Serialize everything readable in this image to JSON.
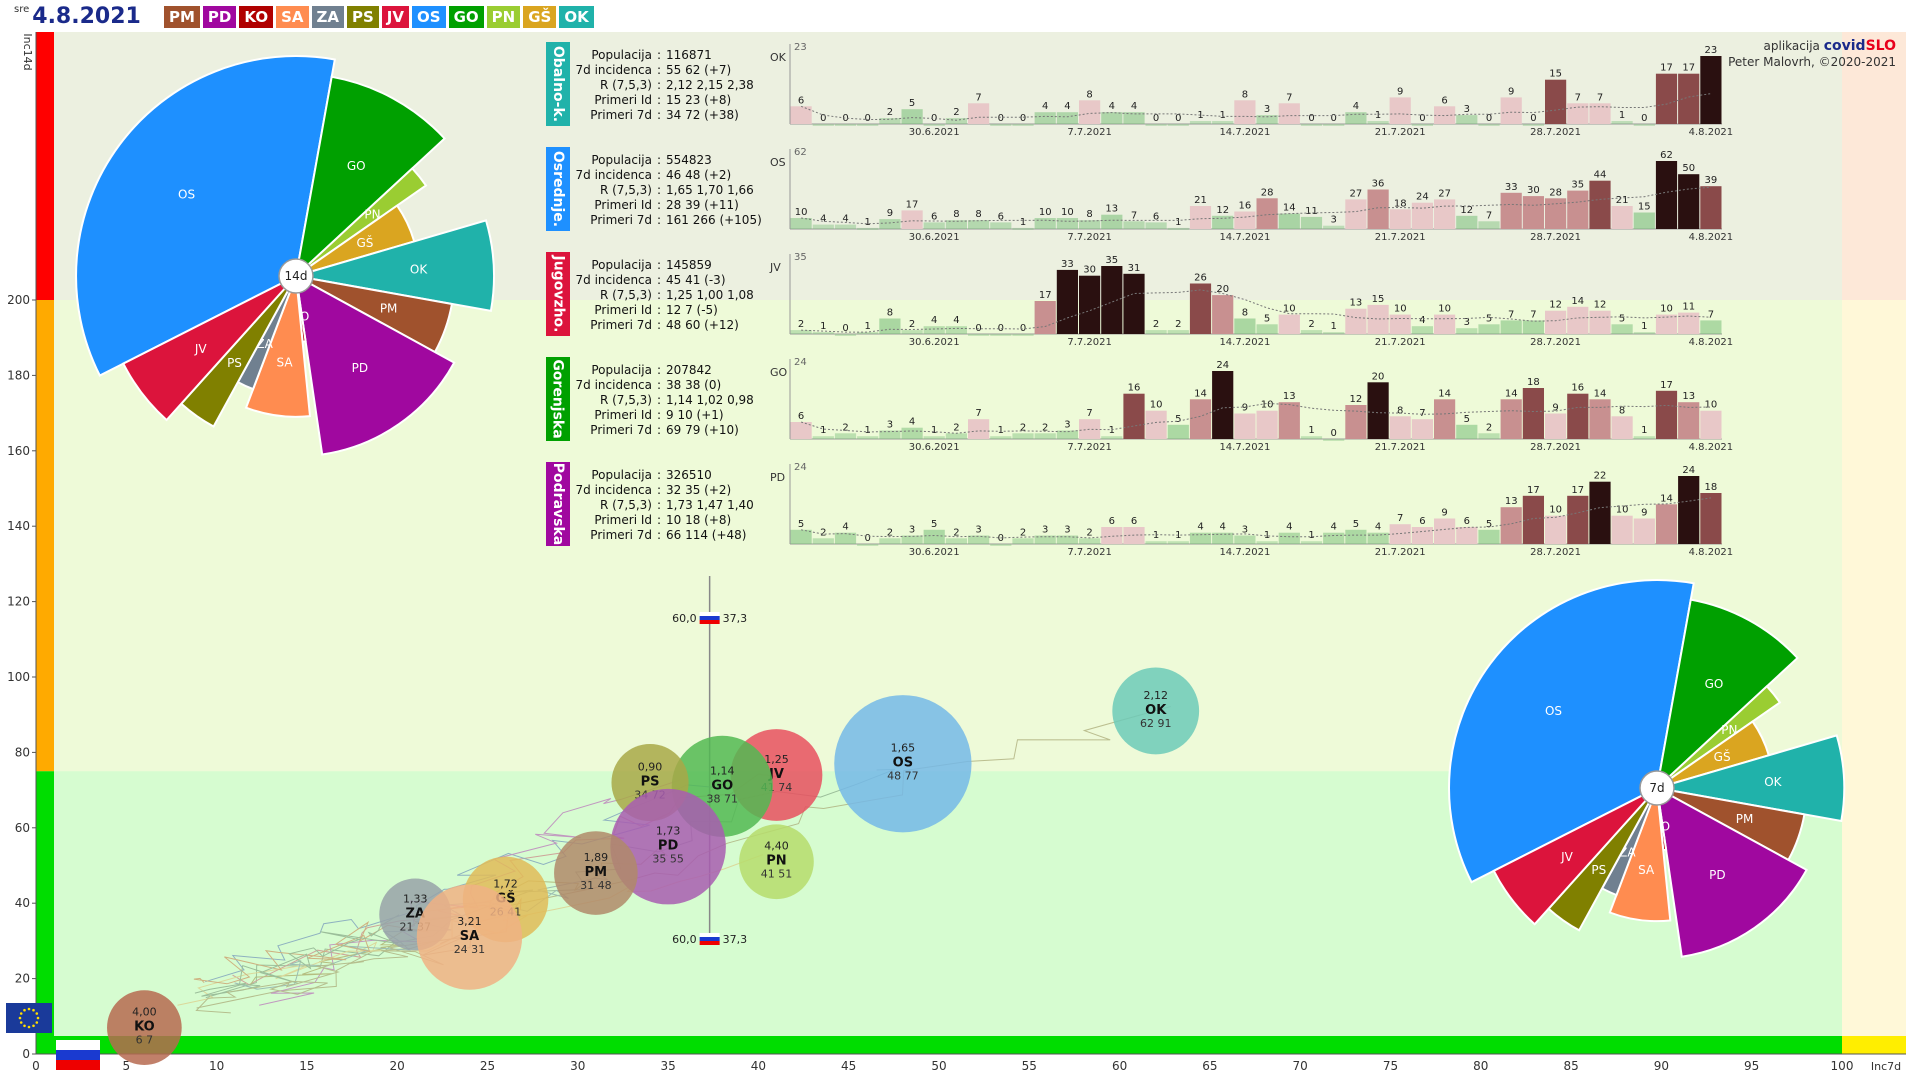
{
  "header": {
    "weekday": "sre",
    "date": "4.8.2021"
  },
  "badges": [
    {
      "label": "PM",
      "color": "#a0522d"
    },
    {
      "label": "PD",
      "color": "#a0089f"
    },
    {
      "label": "KO",
      "color": "#b00000"
    },
    {
      "label": "SA",
      "color": "#ff8c50"
    },
    {
      "label": "ZA",
      "color": "#708090"
    },
    {
      "label": "PS",
      "color": "#808000"
    },
    {
      "label": "JV",
      "color": "#dc143c"
    },
    {
      "label": "OS",
      "color": "#1e90ff"
    },
    {
      "label": "GO",
      "color": "#00a000"
    },
    {
      "label": "PN",
      "color": "#9acd32"
    },
    {
      "label": "GŠ",
      "color": "#daa520"
    },
    {
      "label": "OK",
      "color": "#20b2aa"
    }
  ],
  "credit": {
    "app": "aplikacija",
    "brand1": "covid",
    "brand2": "SLO",
    "author": "Peter Malovrh, ©2020-2021"
  },
  "chart_data": [
    {
      "type": "scatter",
      "xlabel": "Inc7d",
      "ylabel": "Inc14d",
      "xlim": [
        0,
        100
      ],
      "ylim": [
        0,
        220
      ],
      "xticks": [
        0,
        5,
        10,
        15,
        20,
        25,
        30,
        35,
        40,
        45,
        50,
        55,
        60,
        65,
        70,
        75,
        80,
        85,
        90,
        95,
        100
      ],
      "yticks": [
        0,
        20,
        40,
        60,
        80,
        100,
        120,
        140,
        160,
        180,
        200
      ],
      "reference": {
        "x": 37.3,
        "label_left": "60,0",
        "label_right": "37,3"
      },
      "points": [
        {
          "name": "OS",
          "r": "1,65",
          "inc": "48 77",
          "x": 48,
          "y": 77,
          "size": 5548,
          "color": "#74b9e7"
        },
        {
          "name": "OK",
          "r": "2,12",
          "inc": "62 91",
          "x": 62,
          "y": 91,
          "size": 1169,
          "color": "#6ccab8"
        },
        {
          "name": "JV",
          "r": "1,25",
          "inc": "41 74",
          "x": 41,
          "y": 74,
          "size": 1458,
          "color": "#e8505f"
        },
        {
          "name": "GO",
          "r": "1,14",
          "inc": "38 71",
          "x": 38,
          "y": 71,
          "size": 2078,
          "color": "#52b852"
        },
        {
          "name": "PS",
          "r": "0,90",
          "inc": "34 72",
          "x": 34,
          "y": 72,
          "size": 700,
          "color": "#a8a848"
        },
        {
          "name": "PD",
          "r": "1,73",
          "inc": "35 55",
          "x": 35,
          "y": 55,
          "size": 3265,
          "color": "#a85db0"
        },
        {
          "name": "PN",
          "r": "4,40",
          "inc": "41 51",
          "x": 41,
          "y": 51,
          "size": 600,
          "color": "#b6dc6c"
        },
        {
          "name": "PM",
          "r": "1,89",
          "inc": "31 48",
          "x": 31,
          "y": 48,
          "size": 1000,
          "color": "#b08a6a"
        },
        {
          "name": "GŠ",
          "r": "1,72",
          "inc": "26 41",
          "x": 26,
          "y": 41,
          "size": 1100,
          "color": "#e0bb58"
        },
        {
          "name": "ZA",
          "r": "1,33",
          "inc": "21 37",
          "x": 21,
          "y": 37,
          "size": 500,
          "color": "#98a2a8"
        },
        {
          "name": "SA",
          "r": "3,21",
          "inc": "24 31",
          "x": 24,
          "y": 31,
          "size": 2400,
          "color": "#f0b184"
        },
        {
          "name": "KO",
          "r": "4,00",
          "inc": "6 7",
          "x": 6,
          "y": 7,
          "size": 600,
          "color": "#b66a50"
        }
      ]
    },
    {
      "type": "pie",
      "center_label": "14d",
      "slices": [
        {
          "name": "OS",
          "value": 48,
          "radius": 1.0,
          "color": "#1e90ff"
        },
        {
          "name": "GO",
          "value": 14,
          "radius": 0.92,
          "color": "#00a000"
        },
        {
          "name": "PN",
          "value": 3,
          "radius": 0.72,
          "color": "#9acd32"
        },
        {
          "name": "GŠ",
          "value": 7,
          "radius": 0.56,
          "color": "#daa520"
        },
        {
          "name": "OK",
          "value": 10,
          "radius": 0.9,
          "color": "#20b2aa"
        },
        {
          "name": "PM",
          "value": 7,
          "radius": 0.72,
          "color": "#a0522d"
        },
        {
          "name": "PD",
          "value": 20,
          "radius": 0.82,
          "color": "#a0089f"
        },
        {
          "name": "KO",
          "value": 1,
          "radius": 0.3,
          "color": "#b00000"
        },
        {
          "name": "SA",
          "value": 10,
          "radius": 0.64,
          "color": "#ff8c50"
        },
        {
          "name": "ZA",
          "value": 3,
          "radius": 0.55,
          "color": "#708090"
        },
        {
          "name": "PS",
          "value": 5,
          "radius": 0.78,
          "color": "#808000"
        },
        {
          "name": "JV",
          "value": 8,
          "radius": 0.88,
          "color": "#dc143c"
        }
      ]
    },
    {
      "type": "pie",
      "center_label": "7d",
      "slices": [
        {
          "name": "OS",
          "value": 48,
          "radius": 1.0,
          "color": "#1e90ff"
        },
        {
          "name": "GO",
          "value": 14,
          "radius": 0.92,
          "color": "#00a000"
        },
        {
          "name": "PN",
          "value": 3,
          "radius": 0.72,
          "color": "#9acd32"
        },
        {
          "name": "GŠ",
          "value": 7,
          "radius": 0.56,
          "color": "#daa520"
        },
        {
          "name": "OK",
          "value": 10,
          "radius": 0.9,
          "color": "#20b2aa"
        },
        {
          "name": "PM",
          "value": 7,
          "radius": 0.72,
          "color": "#a0522d"
        },
        {
          "name": "PD",
          "value": 20,
          "radius": 0.82,
          "color": "#a0089f"
        },
        {
          "name": "KO",
          "value": 1,
          "radius": 0.3,
          "color": "#b00000"
        },
        {
          "name": "SA",
          "value": 10,
          "radius": 0.64,
          "color": "#ff8c50"
        },
        {
          "name": "ZA",
          "value": 3,
          "radius": 0.55,
          "color": "#708090"
        },
        {
          "name": "PS",
          "value": 5,
          "radius": 0.78,
          "color": "#808000"
        },
        {
          "name": "JV",
          "value": 8,
          "radius": 0.88,
          "color": "#dc143c"
        }
      ]
    },
    {
      "type": "bar",
      "region": "Obalno-k.",
      "code": "OK",
      "color": "#20b2aa",
      "ymax": "23",
      "xticks": [
        "30.6.2021",
        "7.7.2021",
        "14.7.2021",
        "21.7.2021",
        "28.7.2021",
        "4.8.2021"
      ],
      "values": [
        6,
        0,
        0,
        0,
        2,
        5,
        0,
        2,
        7,
        0,
        0,
        4,
        4,
        8,
        4,
        4,
        0,
        0,
        1,
        1,
        8,
        3,
        7,
        0,
        0,
        4,
        1,
        9,
        0,
        6,
        3,
        0,
        9,
        0,
        15,
        7,
        7,
        1,
        0,
        17,
        17,
        23
      ]
    },
    {
      "type": "bar",
      "region": "Osrednje.",
      "code": "OS",
      "color": "#1e90ff",
      "ymax": "62",
      "xticks": [
        "30.6.2021",
        "7.7.2021",
        "14.7.2021",
        "21.7.2021",
        "28.7.2021",
        "4.8.2021"
      ],
      "values": [
        10,
        4,
        4,
        1,
        9,
        17,
        6,
        8,
        8,
        6,
        1,
        10,
        10,
        8,
        13,
        7,
        6,
        1,
        21,
        12,
        16,
        28,
        14,
        11,
        3,
        27,
        36,
        18,
        24,
        27,
        12,
        7,
        33,
        30,
        28,
        35,
        44,
        21,
        15,
        62,
        50,
        39
      ]
    },
    {
      "type": "bar",
      "region": "Jugovzho.",
      "code": "JV",
      "color": "#dc143c",
      "ymax": "35",
      "xticks": [
        "30.6.2021",
        "7.7.2021",
        "14.7.2021",
        "21.7.2021",
        "28.7.2021",
        "4.8.2021"
      ],
      "values": [
        2,
        1,
        0,
        1,
        8,
        2,
        4,
        4,
        0,
        0,
        0,
        17,
        33,
        30,
        35,
        31,
        2,
        2,
        26,
        20,
        8,
        5,
        10,
        2,
        1,
        13,
        15,
        10,
        4,
        10,
        3,
        5,
        7,
        7,
        12,
        14,
        12,
        5,
        1,
        10,
        11,
        7
      ]
    },
    {
      "type": "bar",
      "region": "Gorenjska",
      "code": "GO",
      "color": "#00a000",
      "ymax": "24",
      "xticks": [
        "30.6.2021",
        "7.7.2021",
        "14.7.2021",
        "21.7.2021",
        "28.7.2021",
        "4.8.2021"
      ],
      "values": [
        6,
        1,
        2,
        1,
        3,
        4,
        1,
        2,
        7,
        1,
        2,
        2,
        3,
        7,
        1,
        16,
        10,
        5,
        14,
        24,
        9,
        10,
        13,
        1,
        0,
        12,
        20,
        8,
        7,
        14,
        5,
        2,
        14,
        18,
        9,
        16,
        14,
        8,
        1,
        17,
        13,
        10
      ]
    },
    {
      "type": "bar",
      "region": "Podravska",
      "code": "PD",
      "color": "#a0089f",
      "ymax": "24",
      "xticks": [
        "30.6.2021",
        "7.7.2021",
        "14.7.2021",
        "21.7.2021",
        "28.7.2021",
        "4.8.2021"
      ],
      "values": [
        5,
        2,
        4,
        0,
        2,
        3,
        5,
        2,
        3,
        0,
        2,
        3,
        3,
        2,
        6,
        6,
        1,
        1,
        4,
        4,
        3,
        1,
        4,
        1,
        4,
        5,
        4,
        7,
        6,
        9,
        6,
        5,
        13,
        17,
        10,
        17,
        22,
        10,
        9,
        14,
        24,
        18
      ]
    }
  ],
  "regions": [
    {
      "name": "Obalno-k.",
      "color": "#20b2aa",
      "rows": [
        [
          "Populacija",
          "116871"
        ],
        [
          "7d incidenca",
          "55 62 (+7)"
        ],
        [
          "R (7,5,3)",
          "2,12 2,15 2,38"
        ],
        [
          "Primeri Id",
          "15 23 (+8)"
        ],
        [
          "Primeri 7d",
          "34 72 (+38)"
        ]
      ]
    },
    {
      "name": "Osrednje.",
      "color": "#1e90ff",
      "rows": [
        [
          "Populacija",
          "554823"
        ],
        [
          "7d incidenca",
          "46 48 (+2)"
        ],
        [
          "R (7,5,3)",
          "1,65 1,70 1,66"
        ],
        [
          "Primeri Id",
          "28 39 (+11)"
        ],
        [
          "Primeri 7d",
          "161 266 (+105)"
        ]
      ]
    },
    {
      "name": "Jugovzho.",
      "color": "#dc143c",
      "rows": [
        [
          "Populacija",
          "145859"
        ],
        [
          "7d incidenca",
          "45 41 (-3)"
        ],
        [
          "R (7,5,3)",
          "1,25 1,00 1,08"
        ],
        [
          "Primeri Id",
          "12 7 (-5)"
        ],
        [
          "Primeri 7d",
          "48 60 (+12)"
        ]
      ]
    },
    {
      "name": "Gorenjska",
      "color": "#00a000",
      "rows": [
        [
          "Populacija",
          "207842"
        ],
        [
          "7d incidenca",
          "38 38 (0)"
        ],
        [
          "R (7,5,3)",
          "1,14 1,02 0,98"
        ],
        [
          "Primeri Id",
          "9 10 (+1)"
        ],
        [
          "Primeri 7d",
          "69 79 (+10)"
        ]
      ]
    },
    {
      "name": "Podravska",
      "color": "#a0089f",
      "rows": [
        [
          "Populacija",
          "326510"
        ],
        [
          "7d incidenca",
          "32 35 (+2)"
        ],
        [
          "R (7,5,3)",
          "1,73 1,47 1,40"
        ],
        [
          "Primeri Id",
          "10 18 (+8)"
        ],
        [
          "Primeri 7d",
          "66 114 (+48)"
        ]
      ]
    }
  ],
  "colors": {
    "zone_red": "#ff0000",
    "zone_orange": "#ffaa00",
    "zone_green": "#00dd00",
    "bg_light_green": "#eefad8",
    "bg_lower": "#d6fcd0",
    "bg_top": "#ecf0e0"
  }
}
